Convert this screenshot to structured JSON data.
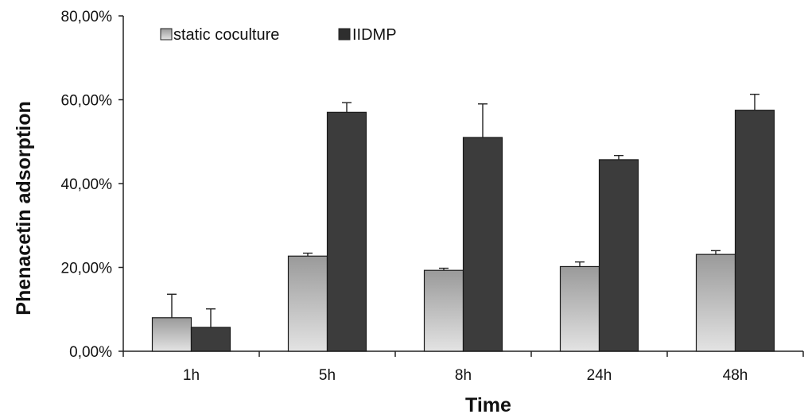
{
  "chart_data": {
    "type": "bar",
    "title": "",
    "xlabel": "Time",
    "ylabel": "Phenacetin adsorption",
    "categories": [
      "1h",
      "5h",
      "8h",
      "24h",
      "48h"
    ],
    "ylim": [
      0,
      80
    ],
    "yticks": [
      0,
      20,
      40,
      60,
      80
    ],
    "ytick_labels": [
      "0,00%",
      "20,00%",
      "40,00%",
      "60,00%",
      "80,00%"
    ],
    "grid": false,
    "legend_position": "top-left",
    "series": [
      {
        "name": "static coculture",
        "values": [
          8.0,
          22.7,
          19.3,
          20.2,
          23.1
        ],
        "errors": [
          5.6,
          0.7,
          0.5,
          1.1,
          0.9
        ],
        "color": "#9a9a9a"
      },
      {
        "name": "IIDMP",
        "values": [
          5.7,
          57.0,
          51.0,
          45.7,
          57.5
        ],
        "errors": [
          4.4,
          2.3,
          8.0,
          1.0,
          3.8
        ],
        "color": "#3c3c3c"
      }
    ]
  }
}
